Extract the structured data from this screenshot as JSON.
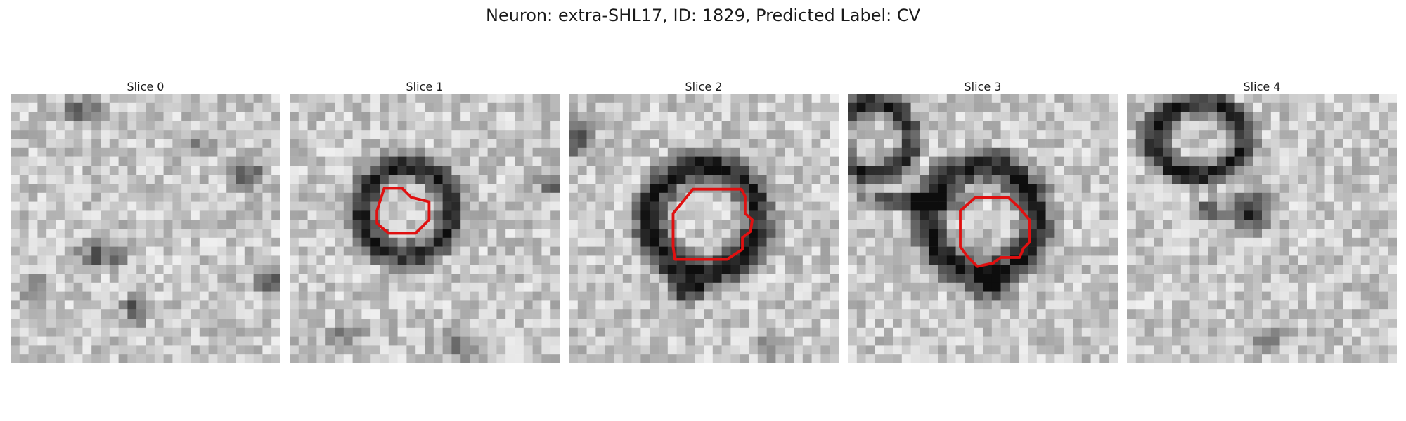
{
  "figure": {
    "title": "Neuron: extra-SHL17, ID: 1829, Predicted Label: CV"
  },
  "panels": [
    {
      "title": "Slice 0",
      "has_contour": false
    },
    {
      "title": "Slice 1",
      "has_contour": true
    },
    {
      "title": "Slice 2",
      "has_contour": true
    },
    {
      "title": "Slice 3",
      "has_contour": true
    },
    {
      "title": "Slice 4",
      "has_contour": false
    }
  ],
  "colors": {
    "contour": "#e01010",
    "background": "#ffffff"
  }
}
